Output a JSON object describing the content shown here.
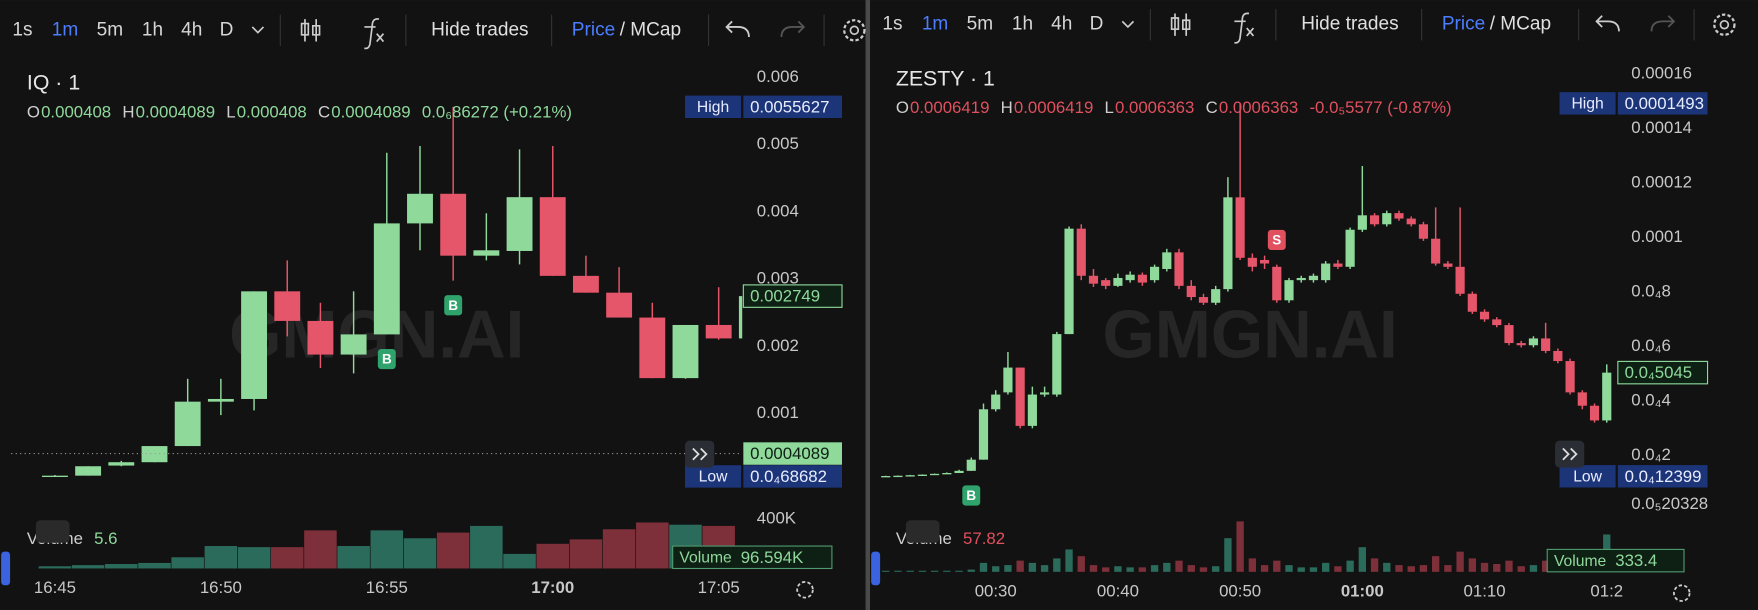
{
  "toolbars": [
    {
      "intervals": [
        "1s",
        "1m",
        "5m",
        "1h",
        "4h",
        "D"
      ],
      "active": 1,
      "hide_trades": "Hide trades",
      "price": "Price",
      "mcap": "/ MCap"
    },
    {
      "intervals": [
        "1s",
        "1m",
        "5m",
        "1h",
        "4h",
        "D"
      ],
      "active": 1,
      "hide_trades": "Hide trades",
      "price": "Price",
      "mcap": "/ MCap"
    }
  ],
  "chart_data": [
    {
      "type": "candlestick",
      "title": "IQ · 1",
      "watermark": "GMGN.AI",
      "legend_color": "#8fd99b",
      "ohlc_legend": [
        {
          "key": "O",
          "value": "0.000408"
        },
        {
          "key": "H",
          "value": "0.0004089"
        },
        {
          "key": "L",
          "value": "0.000408"
        },
        {
          "key": "C",
          "value": "0.0004089"
        }
      ],
      "change": "0.0₆86272 (+0.21%)",
      "up_color": "#8fd99b",
      "down_color": "#e5566a",
      "categories": [
        "16:45",
        null,
        null,
        null,
        null,
        "16:50",
        null,
        null,
        null,
        null,
        "16:55",
        null,
        null,
        null,
        null,
        "17:00",
        null,
        null,
        null,
        null,
        "17:05",
        null
      ],
      "open": [
        7e-05,
        8e-05,
        0.00023,
        0.00028,
        0.00052,
        0.00118,
        0.00122,
        0.00282,
        0.00238,
        0.00188,
        0.00218,
        0.00383,
        0.00427,
        0.00335,
        0.00342,
        0.00422,
        0.00305,
        0.0028,
        0.00243,
        0.00153,
        0.00232,
        0.00212
      ],
      "high": [
        9e-05,
        0.00022,
        0.0003,
        0.00052,
        0.00152,
        0.00152,
        0.00282,
        0.00328,
        0.00265,
        0.00282,
        0.00488,
        0.00498,
        0.0055627,
        0.00398,
        0.00493,
        0.00498,
        0.00335,
        0.00318,
        0.00265,
        0.00232,
        0.00288,
        0.0028
      ],
      "low": [
        6.8682e-05,
        8e-05,
        0.00022,
        0.00028,
        0.00052,
        0.00098,
        0.00105,
        0.00215,
        0.00168,
        0.0016,
        0.00218,
        0.00343,
        0.00298,
        0.00328,
        0.00322,
        0.00305,
        0.0028,
        0.00243,
        0.00153,
        0.00152,
        0.0021,
        0.00212
      ],
      "close": [
        8e-05,
        0.00022,
        0.00028,
        0.00052,
        0.00118,
        0.00122,
        0.00282,
        0.00238,
        0.00188,
        0.00218,
        0.00383,
        0.00427,
        0.00335,
        0.00343,
        0.00422,
        0.00305,
        0.0028,
        0.00243,
        0.00153,
        0.00232,
        0.00212,
        0.002749
      ],
      "ylim": [
        -0.000433,
        0.0064
      ],
      "yticks": [
        0.006,
        0.005,
        0.004,
        0.003,
        0.002,
        0.001
      ],
      "high_tag": {
        "name": "High",
        "value": 0.0055627
      },
      "low_tag": {
        "name": "Low",
        "value": 6.8682e-05,
        "label": "0.0₄68682"
      },
      "last_tag": {
        "value": 0.002749
      },
      "price_line": {
        "value": 0.0004089
      },
      "markers": [
        {
          "label": "B",
          "index": 10,
          "side": "below",
          "color": "#2fa36b"
        },
        {
          "label": "B",
          "index": 12,
          "side": "below",
          "color": "#2fa36b"
        }
      ],
      "volume": {
        "name": "Volume",
        "legend_value": "5.6",
        "tag": "96.594K",
        "up_color": "#2b6b5b",
        "down_color": "#7d2f3a",
        "values": [
          18000,
          27000,
          36000,
          45000,
          91000,
          182000,
          173000,
          173000,
          309000,
          182000,
          309000,
          245000,
          291000,
          345000,
          118000,
          200000,
          236000,
          318000,
          373000,
          355000,
          345000,
          96594
        ],
        "ylim": [
          0,
          500000
        ],
        "yticks": [
          {
            "value": 400000,
            "label": "400K"
          }
        ]
      }
    },
    {
      "type": "candlestick",
      "title": "ZESTY · 1",
      "watermark": "GMGN.AI",
      "legend_color": "#e0505e",
      "ohlc_legend": [
        {
          "key": "O",
          "value": "0.0006419"
        },
        {
          "key": "H",
          "value": "0.0006419"
        },
        {
          "key": "L",
          "value": "0.0006363"
        },
        {
          "key": "C",
          "value": "0.0006363"
        }
      ],
      "change": "-0.0₅5577 (-0.87%)",
      "up_color": "#8fd99b",
      "down_color": "#e5566a",
      "categories": [
        null,
        null,
        null,
        null,
        null,
        null,
        null,
        null,
        null,
        "00:30",
        null,
        null,
        null,
        null,
        null,
        null,
        null,
        null,
        null,
        "00:40",
        null,
        null,
        null,
        null,
        null,
        null,
        null,
        null,
        null,
        "00:50",
        null,
        null,
        null,
        null,
        null,
        null,
        null,
        null,
        null,
        "01:00",
        null,
        null,
        null,
        null,
        null,
        null,
        null,
        null,
        null,
        "01:10",
        null,
        null,
        null,
        null,
        null,
        null,
        null,
        null,
        null,
        "01:2"
      ],
      "open": [
        1.24e-05,
        1.25e-05,
        1.26e-05,
        1.28e-05,
        1.3e-05,
        1.33e-05,
        1.36e-05,
        1.44e-05,
        1.85e-05,
        3.7e-05,
        4.32e-05,
        5.23e-05,
        3.09e-05,
        4.24e-05,
        4.24e-05,
        6.46e-05,
        0.0001033,
        8.6e-05,
        8.44e-05,
        8.23e-05,
        8.44e-05,
        8.64e-05,
        8.44e-05,
        8.85e-05,
        9.46e-05,
        8.23e-05,
        7.82e-05,
        7.61e-05,
        8.11e-05,
        0.0001148,
        9.26e-05,
        9.18e-05,
        8.93e-05,
        7.7e-05,
        8.44e-05,
        8.44e-05,
        8.44e-05,
        9.05e-05,
        8.93e-05,
        0.0001029,
        0.0001082,
        0.0001049,
        0.000109,
        0.000107,
        0.0001049,
        9.96e-05,
        9.05e-05,
        8.93e-05,
        7.94e-05,
        7.28e-05,
        7e-05,
        6.79e-05,
        6.13e-05,
        6.05e-05,
        6.3e-05,
        5.84e-05,
        5.47e-05,
        4.32e-05,
        3.83e-05,
        3.29e-05
      ],
      "high": [
        1.26e-05,
        1.27e-05,
        1.29e-05,
        1.31e-05,
        1.34e-05,
        1.38e-05,
        1.48e-05,
        1.93e-05,
        3.91e-05,
        4.4e-05,
        5.8e-05,
        5.23e-05,
        4.53e-05,
        4.53e-05,
        6.54e-05,
        0.0001041,
        0.0001049,
        8.85e-05,
        8.52e-05,
        8.68e-05,
        8.76e-05,
        8.72e-05,
        9.01e-05,
        9.59e-05,
        9.59e-05,
        8.44e-05,
        7.94e-05,
        8.23e-05,
        0.0001222,
        0.0001493,
        9.42e-05,
        9.34e-05,
        9.01e-05,
        8.52e-05,
        8.6e-05,
        8.68e-05,
        9.14e-05,
        9.18e-05,
        0.0001037,
        0.0001263,
        0.000109,
        0.0001099,
        0.0001099,
        0.0001078,
        0.0001058,
        0.0001111,
        9.14e-05,
        0.0001111,
        8.02e-05,
        7.37e-05,
        7.08e-05,
        6.87e-05,
        6.21e-05,
        6.38e-05,
        6.87e-05,
        5.93e-05,
        5.56e-05,
        4.4e-05,
        3.91e-05,
        5.35e-05
      ],
      "low": [
        1.2399e-05,
        1.25e-05,
        1.26e-05,
        1.28e-05,
        1.3e-05,
        1.33e-05,
        1.36e-05,
        1.44e-05,
        1.85e-05,
        3.62e-05,
        4.24e-05,
        3e-05,
        3e-05,
        4.16e-05,
        4.16e-05,
        6.46e-05,
        8.44e-05,
        8.19e-05,
        8.11e-05,
        8.19e-05,
        8.35e-05,
        8.23e-05,
        8.35e-05,
        8.76e-05,
        8.11e-05,
        7.7e-05,
        7.53e-05,
        7.53e-05,
        8.02e-05,
        9.18e-05,
        8.76e-05,
        8.85e-05,
        7.61e-05,
        7.61e-05,
        8.35e-05,
        8.35e-05,
        8.35e-05,
        8.85e-05,
        8.85e-05,
        0.0001021,
        0.0001041,
        0.0001041,
        0.0001062,
        0.0001041,
        9.88e-05,
        8.97e-05,
        8.85e-05,
        7.86e-05,
        7.2e-05,
        6.91e-05,
        6.71e-05,
        6.05e-05,
        5.97e-05,
        5.97e-05,
        5.76e-05,
        5.39e-05,
        4.24e-05,
        3.7e-05,
        3.21e-05,
        3.21e-05
      ],
      "close": [
        1.25e-05,
        1.26e-05,
        1.28e-05,
        1.3e-05,
        1.33e-05,
        1.36e-05,
        1.44e-05,
        1.85e-05,
        3.7e-05,
        4.24e-05,
        5.23e-05,
        3.09e-05,
        4.24e-05,
        4.32e-05,
        6.46e-05,
        0.0001033,
        8.6e-05,
        8.31e-05,
        8.23e-05,
        8.52e-05,
        8.64e-05,
        8.35e-05,
        8.93e-05,
        9.46e-05,
        8.23e-05,
        7.82e-05,
        7.61e-05,
        8.11e-05,
        0.0001148,
        9.26e-05,
        8.93e-05,
        9.05e-05,
        7.7e-05,
        8.44e-05,
        8.52e-05,
        8.6e-05,
        9.05e-05,
        8.93e-05,
        0.0001029,
        0.0001082,
        0.0001049,
        0.000109,
        0.000107,
        0.0001049,
        9.96e-05,
        9.05e-05,
        8.93e-05,
        7.94e-05,
        7.28e-05,
        7e-05,
        6.79e-05,
        6.13e-05,
        6.05e-05,
        6.3e-05,
        5.84e-05,
        5.47e-05,
        4.32e-05,
        3.83e-05,
        3.29e-05,
        5.045e-05
      ],
      "ylim": [
        -2.1e-06,
        0.0001687
      ],
      "yticks": [
        0.00016,
        0.00014,
        0.00012,
        0.0001,
        {
          "value": 8e-05,
          "label": "0.0₄8"
        },
        {
          "value": 6e-05,
          "label": "0.0₄6"
        },
        {
          "value": 4e-05,
          "label": "0.0₄4"
        },
        {
          "value": 2e-05,
          "label": "0.0₄2"
        },
        {
          "value": 2.0328e-06,
          "label": "0.0₅20328"
        }
      ],
      "high_tag": {
        "name": "High",
        "value": 0.0001493
      },
      "low_tag": {
        "name": "Low",
        "value": 1.2399e-05,
        "label": "0.0₄12399"
      },
      "last_tag": {
        "value": 5.045e-05,
        "label": "0.0₄5045"
      },
      "markers": [
        {
          "label": "B",
          "index": 7,
          "side": "below",
          "color": "#2fa36b"
        },
        {
          "label": "S",
          "index": 32,
          "side": "above",
          "color": "#e0505e"
        }
      ],
      "volume": {
        "name": "Volume",
        "legend_value": "57.82",
        "tag": "333.4",
        "up_color": "#2b6b5b",
        "down_color": "#7d2f3a",
        "values": [
          10,
          10,
          10,
          10,
          10,
          10,
          10,
          20,
          80,
          50,
          60,
          100,
          80,
          60,
          120,
          200,
          140,
          60,
          40,
          50,
          40,
          40,
          60,
          80,
          100,
          60,
          40,
          50,
          300,
          450,
          120,
          60,
          100,
          60,
          40,
          40,
          80,
          50,
          100,
          220,
          120,
          80,
          60,
          50,
          60,
          140,
          60,
          180,
          120,
          80,
          70,
          100,
          50,
          60,
          100,
          80,
          120,
          100,
          140,
          333.4
        ],
        "ylim": [
          0,
          550
        ],
        "yticks": []
      }
    }
  ]
}
